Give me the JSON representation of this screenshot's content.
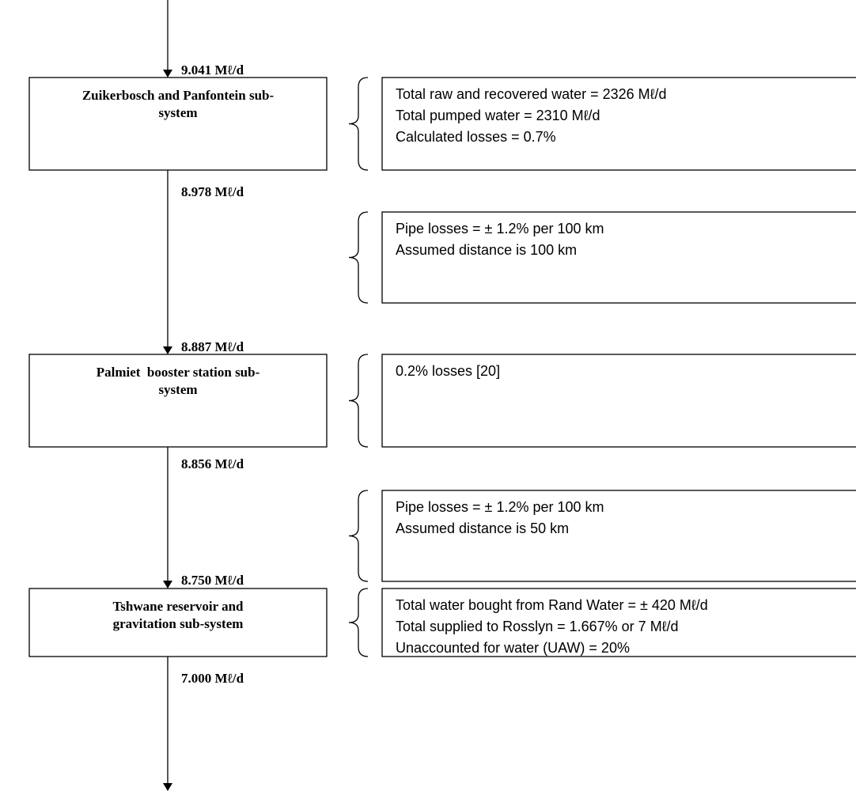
{
  "flows": [
    "9.041 Mℓ/d",
    "8.978 Mℓ/d",
    "8.887 Mℓ/d",
    "8.856 Mℓ/d",
    "8.750 Mℓ/d",
    "7.000 Mℓ/d"
  ],
  "nodes": [
    {
      "lines": [
        "Zuikerbosch and Panfontein sub-",
        "system"
      ]
    },
    {
      "lines": [
        "Palmiet  booster station sub-",
        "system"
      ]
    },
    {
      "lines": [
        "Tshwane reservoir and",
        "gravitation sub-system"
      ]
    }
  ],
  "notes": [
    {
      "lines": [
        "Total raw and recovered water = 2326 Mℓ/d",
        "Total pumped water = 2310 Mℓ/d",
        "Calculated losses = 0.7%"
      ]
    },
    {
      "lines": [
        "Pipe losses = ± 1.2% per 100 km",
        "Assumed distance is 100 km"
      ]
    },
    {
      "lines": [
        "0.2% losses [20]"
      ]
    },
    {
      "lines": [
        "Pipe losses = ± 1.2% per 100 km",
        "Assumed distance is 50 km"
      ]
    },
    {
      "lines": [
        "Total water bought from Rand Water = ± 420 Mℓ/d",
        "Total supplied to Rosslyn = 1.667% or 7 Mℓ/d",
        "Unaccounted for water (UAW) = 20%"
      ]
    }
  ]
}
